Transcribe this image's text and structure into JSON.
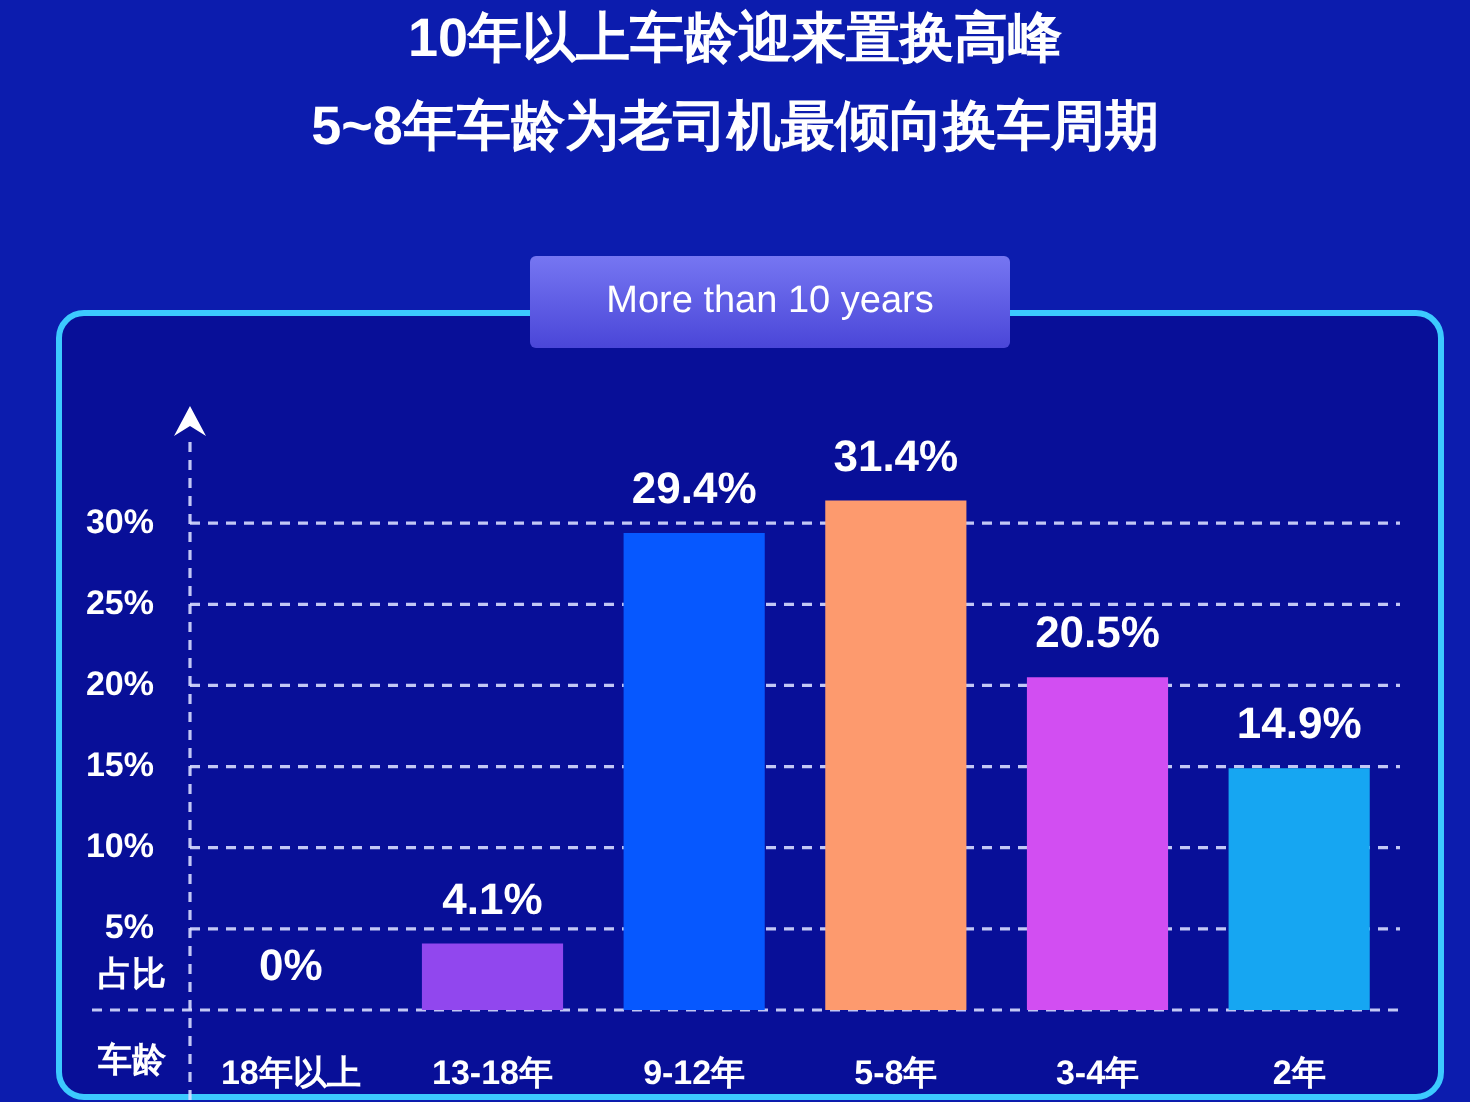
{
  "chart_data": {
    "type": "bar",
    "title": "10年以上车龄迎来置换高峰",
    "subtitle": "5~8年车龄为老司机最倾向换车周期",
    "annotations": [
      "More than 10 years"
    ],
    "xlabel": "车龄",
    "ylabel": "占比",
    "categories": [
      "18年以上",
      "13-18年",
      "9-12年",
      "5-8年",
      "3-4年",
      "2年"
    ],
    "values": [
      0,
      4.1,
      29.4,
      31.4,
      20.5,
      14.9
    ],
    "colors": [
      "#9147ee",
      "#9147ee",
      "#0658ff",
      "#fd9a6e",
      "#d24ef2",
      "#16a6f2"
    ],
    "value_labels": [
      "0%",
      "4.1%",
      "29.4%",
      "31.4%",
      "20.5%",
      "14.9%"
    ],
    "ylim": [
      0,
      35
    ],
    "yticks": [
      {
        "value": 0,
        "label": null
      },
      {
        "value": 5,
        "label": "5%"
      },
      {
        "value": 10,
        "label": "10%"
      },
      {
        "value": 15,
        "label": "15%"
      },
      {
        "value": 20,
        "label": "20%"
      },
      {
        "value": 25,
        "label": "25%"
      },
      {
        "value": 30,
        "label": "30%"
      }
    ],
    "grid": "y"
  }
}
